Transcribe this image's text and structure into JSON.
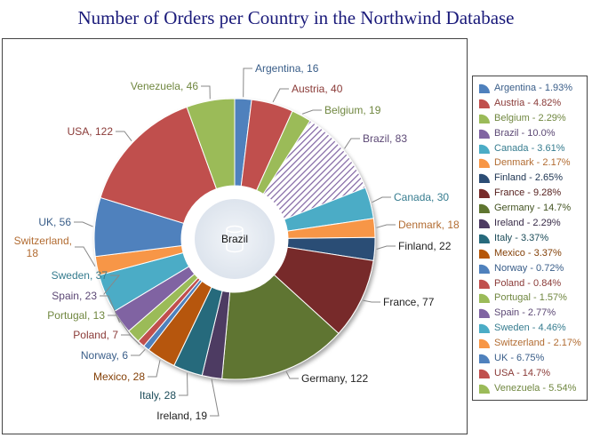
{
  "chart_data": {
    "type": "pie",
    "title": "Number of Orders per Country in the Northwind Database",
    "center_label": "Brazil",
    "series": [
      {
        "name": "Argentina",
        "value": 16,
        "percent": "1.93%",
        "color": "#4f81bd"
      },
      {
        "name": "Austria",
        "value": 40,
        "percent": "4.82%",
        "color": "#c0504d"
      },
      {
        "name": "Belgium",
        "value": 19,
        "percent": "2.29%",
        "color": "#9bbb59"
      },
      {
        "name": "Brazil",
        "value": 83,
        "percent": "10.0%",
        "color": "#8064a2",
        "pattern": "hatched"
      },
      {
        "name": "Canada",
        "value": 30,
        "percent": "3.61%",
        "color": "#4bacc6"
      },
      {
        "name": "Denmark",
        "value": 18,
        "percent": "2.17%",
        "color": "#f79646"
      },
      {
        "name": "Finland",
        "value": 22,
        "percent": "2.65%",
        "color": "#2c4d75"
      },
      {
        "name": "France",
        "value": 77,
        "percent": "9.28%",
        "color": "#772c2a"
      },
      {
        "name": "Germany",
        "value": 122,
        "percent": "14.7%",
        "color": "#5f7530"
      },
      {
        "name": "Ireland",
        "value": 19,
        "percent": "2.29%",
        "color": "#4d3b62"
      },
      {
        "name": "Italy",
        "value": 28,
        "percent": "3.37%",
        "color": "#276a7c"
      },
      {
        "name": "Mexico",
        "value": 28,
        "percent": "3.37%",
        "color": "#b65708"
      },
      {
        "name": "Norway",
        "value": 6,
        "percent": "0.72%",
        "color": "#4f81bd"
      },
      {
        "name": "Poland",
        "value": 7,
        "percent": "0.84%",
        "color": "#c0504d"
      },
      {
        "name": "Portugal",
        "value": 13,
        "percent": "1.57%",
        "color": "#9bbb59"
      },
      {
        "name": "Spain",
        "value": 23,
        "percent": "2.77%",
        "color": "#8064a2"
      },
      {
        "name": "Sweden",
        "value": 37,
        "percent": "4.46%",
        "color": "#4bacc6"
      },
      {
        "name": "Switzerland",
        "value": 18,
        "percent": "2.17%",
        "color": "#f79646"
      },
      {
        "name": "UK",
        "value": 56,
        "percent": "6.75%",
        "color": "#4f81bd"
      },
      {
        "name": "USA",
        "value": 122,
        "percent": "14.7%",
        "color": "#c0504d"
      },
      {
        "name": "Venezuela",
        "value": 46,
        "percent": "5.54%",
        "color": "#9bbb59"
      }
    ],
    "legend_position": "right"
  }
}
